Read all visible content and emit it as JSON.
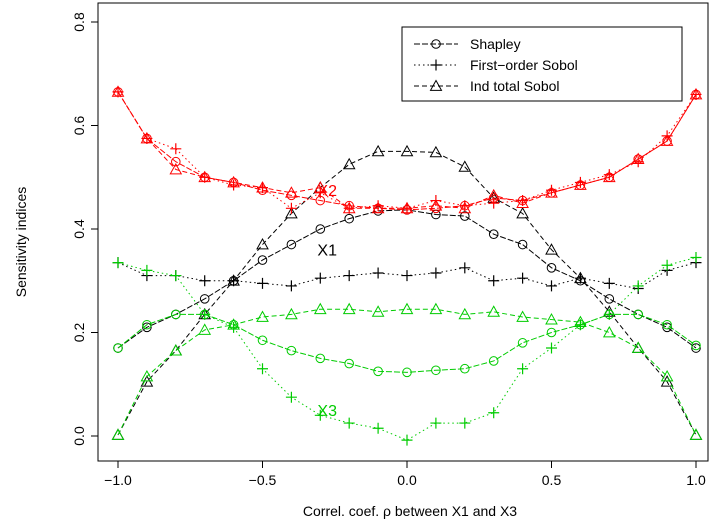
{
  "chart_data": {
    "type": "line",
    "title": "",
    "xlabel": "Correl. coef. ρ between X1 and X3",
    "ylabel": "Sensitivity indices",
    "xlim": [
      -1.0,
      1.0
    ],
    "ylim": [
      0.0,
      0.8
    ],
    "x_ticks": [
      "−1.0",
      "−0.5",
      "0.0",
      "0.5",
      "1.0"
    ],
    "y_ticks": [
      "0.0",
      "0.2",
      "0.4",
      "0.6",
      "0.8"
    ],
    "grid": false,
    "legend": {
      "position": "top-right",
      "entries": [
        {
          "label": "Shapley",
          "marker": "circle",
          "dash": "solid"
        },
        {
          "label": "First−order Sobol",
          "marker": "plus",
          "dash": "dotted"
        },
        {
          "label": "Ind total Sobol",
          "marker": "triangle",
          "dash": "dashed"
        }
      ]
    },
    "colors": {
      "X1": "#000000",
      "X2": "#ff0000",
      "X3": "#00cc00"
    },
    "x": [
      -1.0,
      -0.9,
      -0.8,
      -0.7,
      -0.6,
      -0.5,
      -0.4,
      -0.3,
      -0.2,
      -0.1,
      0.0,
      0.1,
      0.2,
      0.3,
      0.4,
      0.5,
      0.6,
      0.7,
      0.8,
      0.9,
      1.0
    ],
    "series": [
      {
        "variable": "X1",
        "index": "Shapley",
        "color": "#000000",
        "marker": "circle",
        "dash": "solid",
        "values": [
          0.17,
          0.21,
          0.235,
          0.265,
          0.3,
          0.34,
          0.37,
          0.4,
          0.42,
          0.435,
          0.437,
          0.428,
          0.425,
          0.39,
          0.37,
          0.325,
          0.3,
          0.265,
          0.235,
          0.21,
          0.17
        ]
      },
      {
        "variable": "X1",
        "index": "First−order Sobol",
        "color": "#000000",
        "marker": "plus",
        "dash": "dotted",
        "values": [
          0.335,
          0.31,
          0.31,
          0.3,
          0.3,
          0.295,
          0.29,
          0.305,
          0.31,
          0.315,
          0.31,
          0.315,
          0.325,
          0.3,
          0.305,
          0.29,
          0.305,
          0.295,
          0.285,
          0.32,
          0.335
        ]
      },
      {
        "variable": "X1",
        "index": "Ind total Sobol",
        "color": "#000000",
        "marker": "triangle",
        "dash": "dashed",
        "values": [
          0.002,
          0.105,
          0.165,
          0.235,
          0.3,
          0.37,
          0.43,
          0.48,
          0.525,
          0.55,
          0.55,
          0.548,
          0.52,
          0.46,
          0.43,
          0.36,
          0.305,
          0.24,
          0.17,
          0.105,
          0.002
        ]
      },
      {
        "variable": "X2",
        "index": "Shapley",
        "color": "#ff0000",
        "marker": "circle",
        "dash": "solid",
        "values": [
          0.665,
          0.575,
          0.53,
          0.5,
          0.49,
          0.475,
          0.465,
          0.455,
          0.445,
          0.44,
          0.437,
          0.44,
          0.445,
          0.46,
          0.455,
          0.47,
          0.485,
          0.5,
          0.535,
          0.57,
          0.66
        ]
      },
      {
        "variable": "X2",
        "index": "First−order Sobol",
        "color": "#ff0000",
        "marker": "plus",
        "dash": "dotted",
        "values": [
          0.665,
          0.575,
          0.555,
          0.5,
          0.485,
          0.48,
          0.44,
          0.47,
          0.44,
          0.445,
          0.44,
          0.455,
          0.445,
          0.45,
          0.455,
          0.475,
          0.49,
          0.505,
          0.53,
          0.58,
          0.66
        ]
      },
      {
        "variable": "X2",
        "index": "Ind total Sobol",
        "color": "#ff0000",
        "marker": "triangle",
        "dash": "dashed",
        "values": [
          0.665,
          0.575,
          0.515,
          0.5,
          0.49,
          0.48,
          0.47,
          0.48,
          0.44,
          0.44,
          0.44,
          0.445,
          0.44,
          0.465,
          0.45,
          0.47,
          0.485,
          0.5,
          0.535,
          0.57,
          0.66
        ]
      },
      {
        "variable": "X3",
        "index": "Shapley",
        "color": "#00cc00",
        "marker": "circle",
        "dash": "solid",
        "values": [
          0.17,
          0.215,
          0.235,
          0.235,
          0.215,
          0.185,
          0.165,
          0.15,
          0.14,
          0.125,
          0.123,
          0.127,
          0.13,
          0.145,
          0.18,
          0.2,
          0.215,
          0.235,
          0.235,
          0.215,
          0.175
        ]
      },
      {
        "variable": "X3",
        "index": "First−order Sobol",
        "color": "#00cc00",
        "marker": "plus",
        "dash": "dotted",
        "values": [
          0.335,
          0.32,
          0.31,
          0.235,
          0.21,
          0.13,
          0.075,
          0.04,
          0.025,
          0.015,
          -0.008,
          0.025,
          0.025,
          0.045,
          0.13,
          0.17,
          0.215,
          0.235,
          0.29,
          0.33,
          0.345
        ]
      },
      {
        "variable": "X3",
        "index": "Ind total Sobol",
        "color": "#00cc00",
        "marker": "triangle",
        "dash": "dashed",
        "values": [
          0.002,
          0.115,
          0.165,
          0.205,
          0.215,
          0.23,
          0.235,
          0.245,
          0.245,
          0.24,
          0.245,
          0.245,
          0.235,
          0.24,
          0.23,
          0.225,
          0.22,
          0.2,
          0.17,
          0.115,
          0.002
        ]
      }
    ],
    "annotations": [
      {
        "text": "X2",
        "x": -0.31,
        "y": 0.475,
        "color": "#ff0000"
      },
      {
        "text": "X1",
        "x": -0.31,
        "y": 0.36,
        "color": "#000000"
      },
      {
        "text": "X3",
        "x": -0.31,
        "y": 0.05,
        "color": "#00cc00"
      }
    ]
  }
}
